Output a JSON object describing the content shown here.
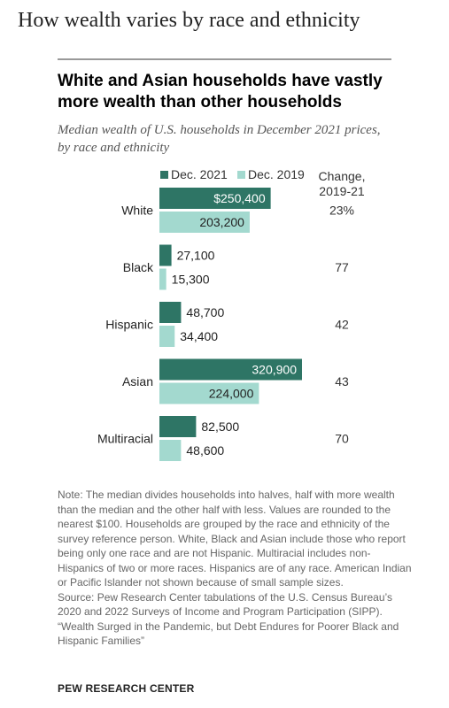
{
  "header": "How wealth varies by race and ethnicity",
  "chart_data": {
    "type": "bar",
    "orientation": "horizontal",
    "title": "White and Asian households have vastly more wealth than other households",
    "subtitle": "Median wealth of U.S. households in December 2021 prices, by race and ethnicity",
    "categories": [
      "White",
      "Black",
      "Hispanic",
      "Asian",
      "Multiracial"
    ],
    "series": [
      {
        "name": "Dec. 2021",
        "values": [
          250400,
          27100,
          48700,
          320900,
          82500
        ],
        "labels": [
          "$250,400",
          "27,100",
          "48,700",
          "320,900",
          "82,500"
        ],
        "color": "#2e7565"
      },
      {
        "name": "Dec. 2019",
        "values": [
          203200,
          15300,
          34400,
          224000,
          48600
        ],
        "labels": [
          "203,200",
          "15,300",
          "34,400",
          "224,000",
          "48,600"
        ],
        "color": "#a3d9cf"
      }
    ],
    "change_header": "Change, 2019-21",
    "change_values": [
      "23%",
      "77",
      "42",
      "43",
      "70"
    ],
    "legend_placement": "top",
    "grid": false
  },
  "notes": [
    "Note: The median divides households into halves, half with more wealth than the median and the other half with less. Values are rounded to the nearest $100. Households are grouped by the race and ethnicity of the survey reference person. White, Black and Asian include those who report being only one race and are not Hispanic. Multiracial includes non-Hispanics of two or more races. Hispanics are of any race. American Indian or Pacific Islander not shown because of small sample sizes.",
    "Source: Pew Research Center tabulations of the U.S. Census Bureau’s 2020 and 2022 Surveys of Income and Program Participation (SIPP).",
    "“Wealth Surged in the Pandemic, but Debt Endures for Poorer Black and Hispanic Families”"
  ],
  "brand": "PEW RESEARCH CENTER"
}
